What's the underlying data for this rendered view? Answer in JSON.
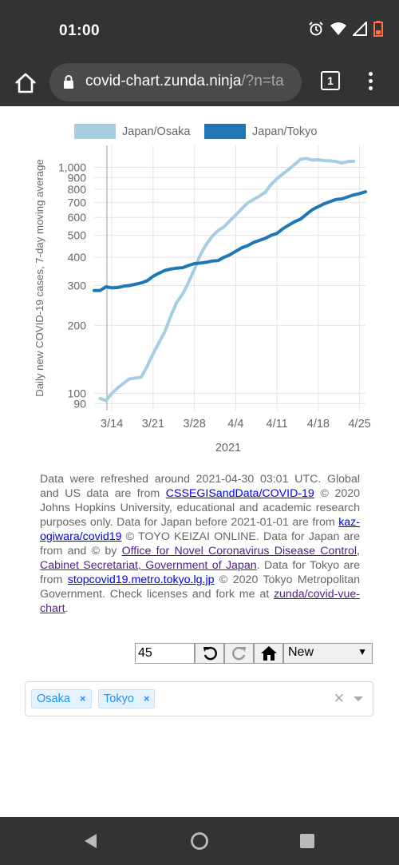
{
  "status": {
    "time": "01:00"
  },
  "browser": {
    "url_main": "covid-chart.zunda.ninja",
    "url_rest": "/?n=ta",
    "tab_count": "1"
  },
  "chart_data": {
    "type": "line",
    "ylabel": "Daily new COVID-19 cases, 7-day moving average",
    "xlabel": "2021",
    "yscale": "log",
    "ylim": [
      84,
      1250
    ],
    "ytick_values": [
      90,
      100,
      200,
      300,
      400,
      500,
      600,
      700,
      800,
      900,
      1000
    ],
    "yticks": [
      "90",
      "100",
      "200",
      "300",
      "400",
      "500",
      "600",
      "700",
      "800",
      "900",
      "1,000"
    ],
    "xtick_days": [
      13,
      20,
      27,
      34,
      41,
      48,
      55
    ],
    "xticks": [
      "3/14",
      "3/21",
      "3/28",
      "4/4",
      "4/11",
      "4/18",
      "4/25"
    ],
    "grid": true,
    "legend_position": "top",
    "x_start_label": "3/14",
    "series": [
      {
        "name": "Japan/Osaka",
        "color": "#a6cee3",
        "x": [
          11,
          12,
          13,
          14,
          15,
          16,
          17,
          18,
          19,
          20,
          21,
          22,
          23,
          24,
          25,
          26,
          27,
          28,
          29,
          30,
          31,
          32,
          33,
          34,
          35,
          36,
          37,
          38,
          39,
          40,
          41,
          42,
          43,
          44,
          45,
          46,
          47,
          48,
          49,
          50,
          51,
          52,
          53,
          54
        ],
        "values": [
          95,
          93,
          100,
          106,
          111,
          116,
          117,
          118,
          132,
          150,
          168,
          188,
          220,
          253,
          275,
          310,
          355,
          410,
          455,
          495,
          525,
          545,
          580,
          615,
          655,
          695,
          720,
          745,
          775,
          840,
          890,
          935,
          980,
          1030,
          1085,
          1095,
          1075,
          1080,
          1070,
          1068,
          1060,
          1045,
          1060,
          1065
        ]
      },
      {
        "name": "Japan/Tokyo",
        "color": "#1f78b4",
        "x": [
          10,
          11,
          12,
          13,
          14,
          15,
          16,
          17,
          18,
          19,
          20,
          21,
          22,
          23,
          24,
          25,
          26,
          27,
          28,
          29,
          30,
          31,
          32,
          33,
          34,
          35,
          36,
          37,
          38,
          39,
          40,
          41,
          42,
          43,
          44,
          45,
          46,
          47,
          48,
          49,
          50,
          51,
          52,
          53,
          54,
          55,
          56
        ],
        "values": [
          285,
          285,
          296,
          293,
          294,
          298,
          300,
          304,
          308,
          315,
          330,
          340,
          350,
          355,
          358,
          360,
          368,
          375,
          377,
          380,
          385,
          387,
          400,
          410,
          425,
          440,
          450,
          465,
          475,
          485,
          500,
          510,
          535,
          555,
          575,
          590,
          620,
          650,
          670,
          690,
          705,
          720,
          725,
          740,
          755,
          765,
          780
        ]
      }
    ]
  },
  "notice": {
    "p1": "Data were refreshed around 2021-04-30 03:01 UTC. Global and US data are from ",
    "link1": "CSSEGISandData/COVID-19",
    "p2": " © 2020 Johns Hopkins University, educational and academic research purposes only. Data for Japan before 2021-01-01 are from ",
    "link2": "kaz-ogiwara/covid19",
    "p3": " © TOYO KEIZAI ONLINE. Data for Japan are from and © by ",
    "link3": "Office for Novel Coronavirus Disease Control, Cabinet Secretariat, Government of Japan",
    "p4": ". Data for Tokyo are from ",
    "link4": "stopcovid19.metro.tokyo.lg.jp",
    "p5": " © 2020 Tokyo Metropolitan Government. Check licenses and fork me at ",
    "link5": "zunda/covid-vue-chart",
    "p6": "."
  },
  "controls": {
    "days_value": "45",
    "select_value": "New",
    "select_options": [
      "New"
    ]
  },
  "selected_tags": [
    "Osaka",
    "Tokyo"
  ],
  "colors": {
    "bar": "#333333",
    "osaka": "#a6cee3",
    "tokyo": "#1f78b4",
    "tag_text": "#1e90ff"
  },
  "icons": [
    "alarm-icon",
    "wifi-icon",
    "signal-icon",
    "battery-icon",
    "home-icon",
    "lock-icon",
    "tabs-icon",
    "more-vert-icon",
    "undo-icon",
    "redo-icon",
    "reset-home-icon",
    "dropdown-caret-icon",
    "clear-icon",
    "back-icon",
    "home-circle-icon",
    "recents-icon"
  ]
}
